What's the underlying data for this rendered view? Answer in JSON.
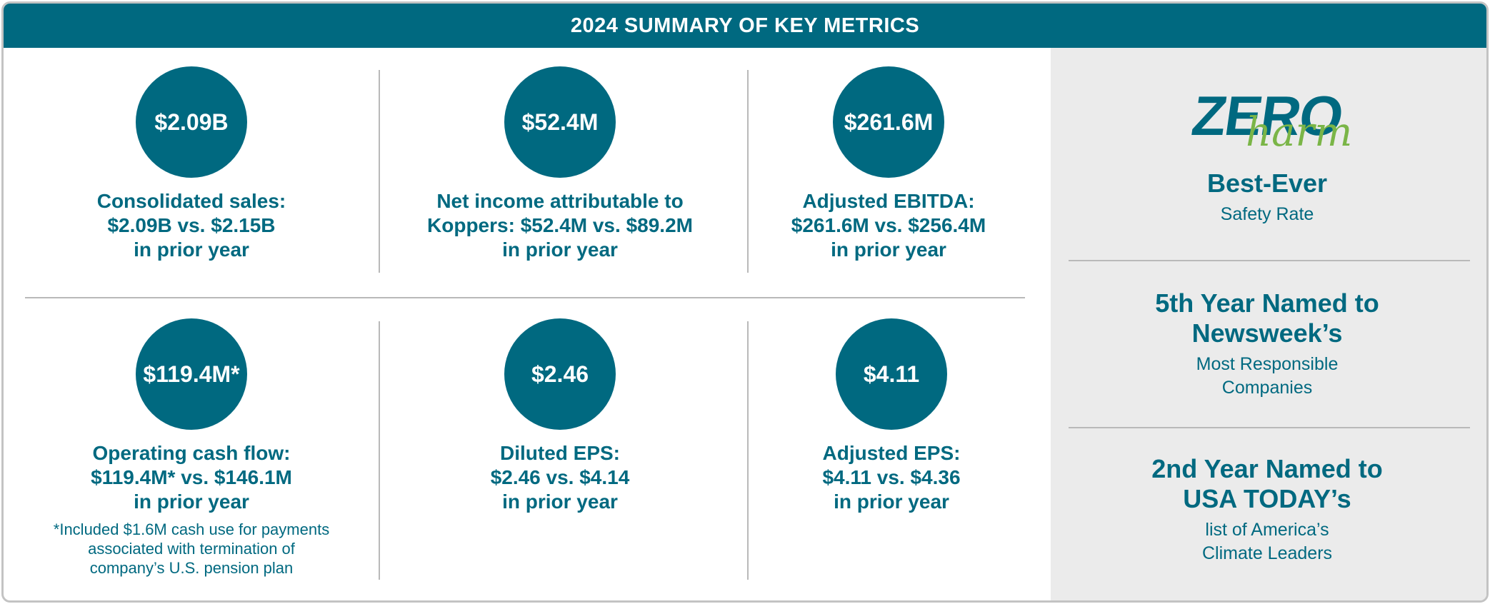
{
  "header": {
    "title": "2024 SUMMARY OF KEY METRICS"
  },
  "colors": {
    "primary": "#006980",
    "accent_green": "#7ab547",
    "panel_gray": "#ebebeb",
    "divider": "#b9b9b9"
  },
  "metrics": [
    {
      "value": "$2.09B",
      "lines": [
        "Consolidated sales:",
        "$2.09B vs. $2.15B",
        "in prior year"
      ]
    },
    {
      "value": "$52.4M",
      "lines": [
        "Net income attributable to",
        "Koppers: $52.4M vs. $89.2M",
        "in prior year"
      ]
    },
    {
      "value": "$261.6M",
      "lines": [
        "Adjusted EBITDA:",
        "$261.6M vs. $256.4M",
        "in prior year"
      ]
    },
    {
      "value": "$119.4M*",
      "lines": [
        "Operating cash flow:",
        "$119.4M* vs. $146.1M",
        "in prior year"
      ],
      "footnote": [
        "*Included $1.6M cash use for payments",
        "associated with termination of",
        "company’s U.S. pension plan"
      ]
    },
    {
      "value": "$2.46",
      "lines": [
        "Diluted EPS:",
        "$2.46 vs. $4.14",
        "in prior year"
      ]
    },
    {
      "value": "$4.11",
      "lines": [
        "Adjusted EPS:",
        "$4.11 vs. $4.36",
        "in prior year"
      ]
    }
  ],
  "logo": {
    "word1": "ZERO",
    "word2": "harm"
  },
  "awards": [
    {
      "title": [
        "Best-Ever"
      ],
      "sub": [
        "Safety Rate"
      ]
    },
    {
      "title": [
        "5th Year Named to",
        "Newsweek’s"
      ],
      "sub": [
        "Most Responsible",
        "Companies"
      ]
    },
    {
      "title": [
        "2nd Year Named to",
        "USA TODAY’s"
      ],
      "sub": [
        "list of America’s",
        "Climate Leaders"
      ]
    }
  ]
}
